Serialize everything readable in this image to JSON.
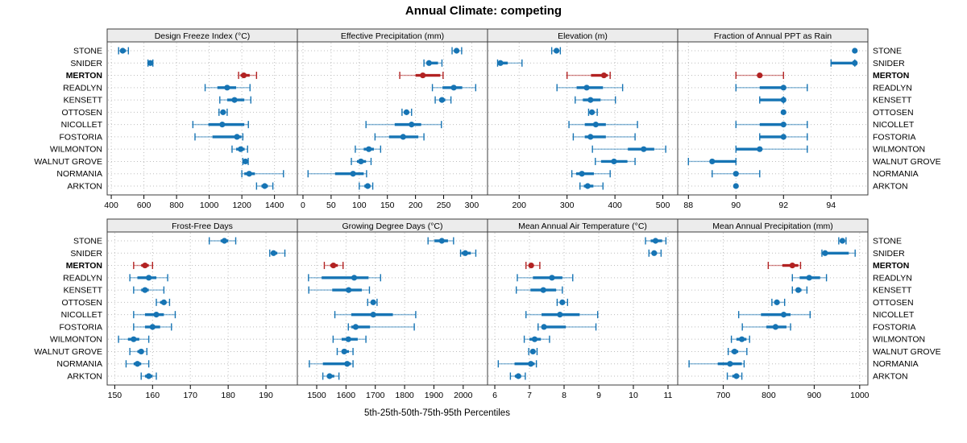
{
  "title": "Annual Climate: competing",
  "caption": "5th-25th-50th-75th-95th Percentiles",
  "sites": [
    "STONE",
    "SNIDER",
    "MERTON",
    "READLYN",
    "KENSETT",
    "OTTOSEN",
    "NICOLLET",
    "FOSTORIA",
    "WILMONTON",
    "WALNUT GROVE",
    "NORMANIA",
    "ARKTON"
  ],
  "highlight_site": "MERTON",
  "colors": {
    "series": "#1674B4",
    "highlight": "#B22222",
    "strip_bg": "#ECECEC",
    "panel_border": "#3C3C3C",
    "grid": "#BDBDBD",
    "text": "#000000"
  },
  "chart_data": {
    "type": "dotplot-trellis",
    "title": "Annual Climate: competing",
    "subtitle": "5th-25th-50th-75th-95th Percentiles",
    "layout": {
      "rows": 2,
      "cols": 4,
      "grid": "dotted",
      "legend": "none"
    },
    "percentiles": [
      5,
      25,
      50,
      75,
      95
    ],
    "series_order": "same order as sites (top row STONE ... bottom row ARKTON)",
    "panels": [
      {
        "title": "Design Freeze Index (°C)",
        "row": 0,
        "col": 0,
        "xlim": [
          375,
          1540
        ],
        "ticks": [
          400,
          600,
          800,
          1000,
          1200,
          1400
        ],
        "series": [
          [
            445,
            455,
            470,
            490,
            505
          ],
          [
            625,
            635,
            640,
            645,
            655
          ],
          [
            1180,
            1192,
            1212,
            1248,
            1290
          ],
          [
            975,
            1050,
            1110,
            1165,
            1250
          ],
          [
            1065,
            1110,
            1155,
            1215,
            1255
          ],
          [
            1060,
            1075,
            1085,
            1095,
            1110
          ],
          [
            900,
            995,
            1080,
            1215,
            1240
          ],
          [
            913,
            1020,
            1170,
            1198,
            1206
          ],
          [
            1140,
            1165,
            1193,
            1217,
            1235
          ],
          [
            1206,
            1215,
            1222,
            1230,
            1239
          ],
          [
            1200,
            1215,
            1245,
            1280,
            1455
          ],
          [
            1290,
            1320,
            1340,
            1360,
            1390
          ]
        ]
      },
      {
        "title": "Effective Precipitation (mm)",
        "row": 0,
        "col": 1,
        "xlim": [
          -10,
          328
        ],
        "ticks": [
          0,
          50,
          100,
          150,
          200,
          250,
          300
        ],
        "series": [
          [
            265,
            269,
            273,
            277,
            282
          ],
          [
            215,
            220,
            224,
            240,
            247
          ],
          [
            172,
            200,
            213,
            244,
            249
          ],
          [
            230,
            248,
            268,
            283,
            307
          ],
          [
            235,
            242,
            247,
            253,
            263
          ],
          [
            176,
            181,
            184,
            188,
            193
          ],
          [
            112,
            163,
            193,
            210,
            246
          ],
          [
            128,
            153,
            178,
            205,
            215
          ],
          [
            93,
            108,
            117,
            126,
            138
          ],
          [
            86,
            96,
            103,
            112,
            121
          ],
          [
            9,
            57,
            89,
            108,
            113
          ],
          [
            100,
            109,
            115,
            120,
            124
          ]
        ]
      },
      {
        "title": "Elevation (m)",
        "row": 0,
        "col": 2,
        "xlim": [
          134,
          531
        ],
        "ticks": [
          200,
          300,
          400,
          500
        ],
        "series": [
          [
            268,
            273,
            278,
            281,
            286
          ],
          [
            155,
            158,
            161,
            176,
            206
          ],
          [
            300,
            350,
            377,
            385,
            390
          ],
          [
            279,
            320,
            341,
            375,
            416
          ],
          [
            317,
            333,
            349,
            370,
            401
          ],
          [
            345,
            349,
            352,
            357,
            363
          ],
          [
            304,
            337,
            360,
            381,
            447
          ],
          [
            313,
            337,
            349,
            381,
            442
          ],
          [
            353,
            427,
            460,
            482,
            506
          ],
          [
            359,
            371,
            398,
            426,
            442
          ],
          [
            310,
            319,
            331,
            356,
            390
          ],
          [
            327,
            335,
            343,
            355,
            375
          ]
        ]
      },
      {
        "title": "Fraction of Annual PPT as Rain",
        "row": 0,
        "col": 3,
        "xlim": [
          87.55,
          95.55
        ],
        "ticks": [
          88,
          90,
          92,
          94
        ],
        "series": [
          [
            95,
            95,
            95,
            95,
            95
          ],
          [
            94,
            94,
            95,
            95,
            95
          ],
          [
            90,
            91,
            91,
            91,
            92
          ],
          [
            90,
            91,
            92,
            92,
            93
          ],
          [
            91,
            91,
            92,
            92,
            92
          ],
          [
            92,
            92,
            92,
            92,
            92
          ],
          [
            90,
            91,
            92,
            92,
            93
          ],
          [
            91,
            91,
            92,
            92,
            93
          ],
          [
            90,
            90,
            91,
            91,
            93
          ],
          [
            88,
            89,
            89,
            90,
            90
          ],
          [
            89,
            90,
            90,
            90,
            91
          ],
          [
            90,
            90,
            90,
            90,
            90
          ]
        ]
      },
      {
        "title": "Frost-Free Days",
        "row": 1,
        "col": 0,
        "xlim": [
          148,
          198.3
        ],
        "ticks": [
          150,
          160,
          170,
          180,
          190
        ],
        "series": [
          [
            175,
            178,
            179,
            180,
            182
          ],
          [
            191,
            192,
            192,
            193,
            195
          ],
          [
            155,
            157,
            158,
            159,
            160
          ],
          [
            154,
            156,
            159,
            161,
            164
          ],
          [
            155,
            157,
            158,
            159,
            163
          ],
          [
            161,
            162,
            163,
            163.5,
            164.5
          ],
          [
            155,
            158,
            161,
            163,
            166
          ],
          [
            155,
            158,
            160,
            162,
            165
          ],
          [
            151,
            153.5,
            155,
            156.5,
            159
          ],
          [
            154,
            156,
            157,
            157.5,
            158.5
          ],
          [
            153,
            155,
            156,
            157,
            159
          ],
          [
            157,
            158,
            159,
            160,
            161
          ]
        ]
      },
      {
        "title": "Growing Degree Days (°C)",
        "row": 1,
        "col": 1,
        "xlim": [
          1434,
          2083
        ],
        "ticks": [
          1500,
          1600,
          1700,
          1800,
          1900,
          2000
        ],
        "series": [
          [
            1880,
            1902,
            1927,
            1948,
            1967
          ],
          [
            1991,
            1994,
            2007,
            2026,
            2043
          ],
          [
            1526,
            1546,
            1557,
            1572,
            1590
          ],
          [
            1472,
            1517,
            1628,
            1677,
            1718
          ],
          [
            1473,
            1553,
            1609,
            1654,
            1680
          ],
          [
            1674,
            1685,
            1693,
            1700,
            1706
          ],
          [
            1562,
            1618,
            1693,
            1760,
            1838
          ],
          [
            1608,
            1618,
            1633,
            1682,
            1833
          ],
          [
            1556,
            1585,
            1608,
            1640,
            1668
          ],
          [
            1570,
            1585,
            1594,
            1610,
            1624
          ],
          [
            1475,
            1521,
            1604,
            1617,
            1624
          ],
          [
            1521,
            1535,
            1544,
            1560,
            1576
          ]
        ]
      },
      {
        "title": "Mean Annual Air Temperature (°C)",
        "row": 1,
        "col": 2,
        "xlim": [
          5.79,
          11.28
        ],
        "ticks": [
          6,
          7,
          8,
          9,
          10,
          11
        ],
        "series": [
          [
            10.35,
            10.5,
            10.64,
            10.83,
            10.94
          ],
          [
            10.45,
            10.55,
            10.6,
            10.68,
            10.8
          ],
          [
            6.9,
            6.98,
            7.05,
            7.12,
            7.3
          ],
          [
            6.65,
            7.1,
            7.65,
            7.95,
            8.25
          ],
          [
            6.62,
            7.03,
            7.4,
            7.77,
            7.95
          ],
          [
            7.8,
            7.88,
            7.95,
            8.02,
            8.1
          ],
          [
            6.9,
            7.35,
            7.88,
            8.45,
            8.97
          ],
          [
            7.25,
            7.35,
            7.42,
            8.05,
            8.92
          ],
          [
            6.85,
            7.0,
            7.15,
            7.33,
            7.58
          ],
          [
            6.98,
            7.04,
            7.1,
            7.16,
            7.22
          ],
          [
            6.1,
            6.57,
            7.04,
            7.15,
            7.2
          ],
          [
            6.45,
            6.58,
            6.68,
            6.76,
            6.88
          ]
        ]
      },
      {
        "title": "Mean Annual Precipitation (mm)",
        "row": 1,
        "col": 3,
        "xlim": [
          600,
          1018
        ],
        "ticks": [
          700,
          800,
          900,
          1000
        ],
        "series": [
          [
            954,
            958,
            962,
            966,
            970
          ],
          [
            917,
            921,
            924,
            976,
            990
          ],
          [
            799,
            830,
            852,
            865,
            870
          ],
          [
            852,
            868,
            889,
            913,
            927
          ],
          [
            852,
            860,
            865,
            872,
            884
          ],
          [
            807,
            813,
            818,
            824,
            835
          ],
          [
            734,
            783,
            833,
            848,
            891
          ],
          [
            742,
            795,
            815,
            839,
            848
          ],
          [
            718,
            729,
            741,
            751,
            758
          ],
          [
            711,
            718,
            725,
            733,
            752
          ],
          [
            625,
            688,
            715,
            741,
            746
          ],
          [
            709,
            720,
            729,
            735,
            741
          ]
        ]
      }
    ]
  }
}
